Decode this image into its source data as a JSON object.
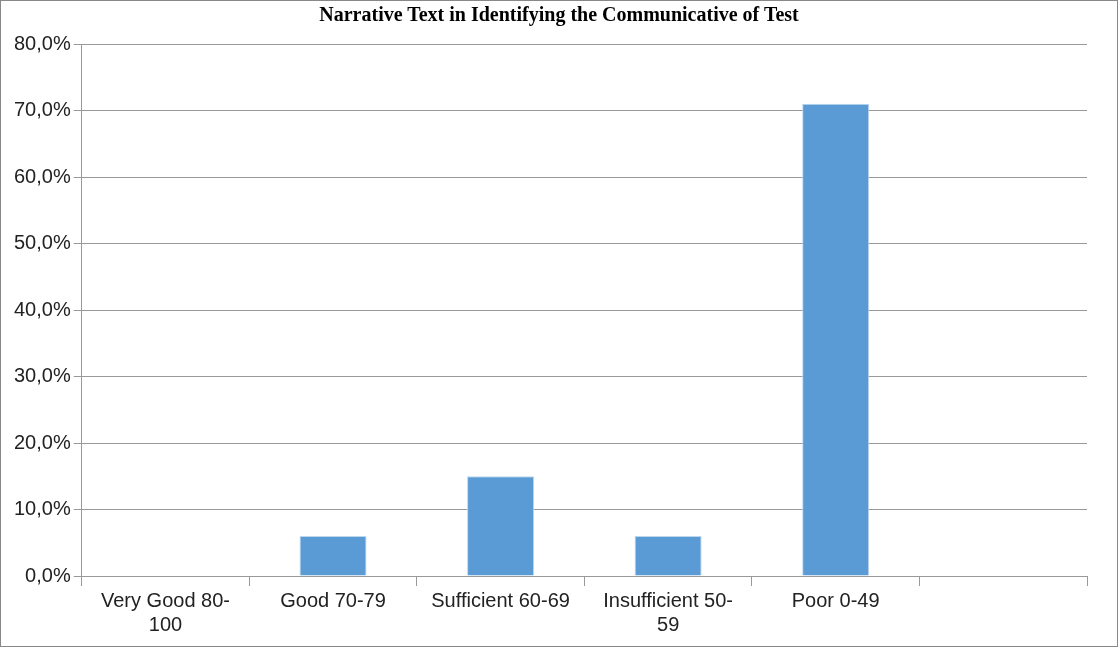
{
  "chart_data": {
    "type": "bar",
    "title": "Narrative Text in Identifying the Communicative of Test",
    "categories": [
      "Very Good 80-100",
      "Good 70-79",
      "Sufficient 60-69",
      "Insufficient 50-59",
      "Poor 0-49",
      null
    ],
    "values": [
      0,
      6,
      15,
      6,
      71,
      null
    ],
    "color": "#5b9bd5",
    "ylim": [
      0,
      80
    ],
    "yticks": [
      {
        "value": 0,
        "label": "0,0%"
      },
      {
        "value": 10,
        "label": "10,0%"
      },
      {
        "value": 20,
        "label": "20,0%"
      },
      {
        "value": 30,
        "label": "30,0%"
      },
      {
        "value": 40,
        "label": "40,0%"
      },
      {
        "value": 50,
        "label": "50,0%"
      },
      {
        "value": 60,
        "label": "60,0%"
      },
      {
        "value": 70,
        "label": "70,0%"
      },
      {
        "value": 80,
        "label": "80,0%"
      }
    ],
    "grid": "y",
    "legend": false
  }
}
